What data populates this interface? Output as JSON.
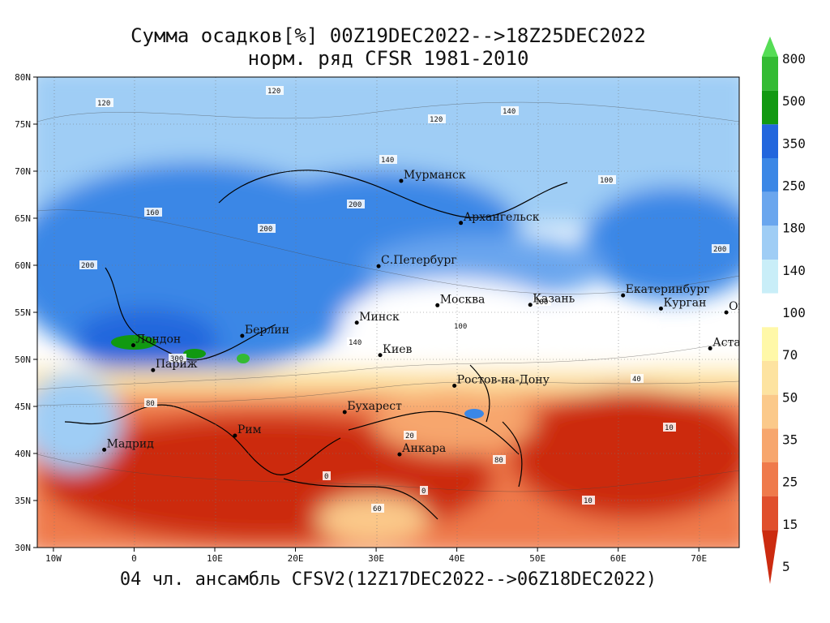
{
  "title_line1": "Сумма осадков[%] 00Z19DEC2022-->18Z25DEC2022",
  "title_line2": "норм. ряд CFSR 1981-2010",
  "footer": "04 чл. ансамбль CFSV2(12Z17DEC2022-->06Z18DEC2022)",
  "lat_ticks": [
    "80N",
    "75N",
    "70N",
    "65N",
    "60N",
    "55N",
    "50N",
    "45N",
    "40N",
    "35N",
    "30N"
  ],
  "lon_ticks": [
    "10W",
    "0",
    "10E",
    "20E",
    "30E",
    "40E",
    "50E",
    "60E",
    "70E"
  ],
  "colorbar": {
    "labels": [
      "800",
      "500",
      "350",
      "250",
      "180",
      "140",
      "100",
      "70",
      "50",
      "35",
      "25",
      "15",
      "5"
    ],
    "colors": [
      "#55dd55",
      "#33bb33",
      "#119911",
      "#2266dd",
      "#3b87e6",
      "#6aa6ee",
      "#9fcdf5",
      "#c9eef8",
      "#ffffff",
      "#fff8a8",
      "#fde3a0",
      "#fbc98a",
      "#f7a66d",
      "#ef7a4b",
      "#e04f2c",
      "#cc2b10"
    ]
  },
  "cities": [
    {
      "name": "Мурманск",
      "lon": 33.1,
      "lat": 68.97
    },
    {
      "name": "Архангельск",
      "lon": 40.5,
      "lat": 64.5
    },
    {
      "name": "С.Петербург",
      "lon": 30.3,
      "lat": 59.9
    },
    {
      "name": "Москва",
      "lon": 37.6,
      "lat": 55.75
    },
    {
      "name": "Казань",
      "lon": 49.1,
      "lat": 55.8
    },
    {
      "name": "Екатеринбург",
      "lon": 60.6,
      "lat": 56.8
    },
    {
      "name": "Курган",
      "lon": 65.3,
      "lat": 55.4
    },
    {
      "name": "Омск",
      "lon": 73.4,
      "lat": 54.99
    },
    {
      "name": "Астана",
      "lon": 71.4,
      "lat": 51.17
    },
    {
      "name": "Минск",
      "lon": 27.6,
      "lat": 53.9
    },
    {
      "name": "Киев",
      "lon": 30.5,
      "lat": 50.45
    },
    {
      "name": "Берлин",
      "lon": 13.4,
      "lat": 52.5
    },
    {
      "name": "Лондон",
      "lon": -0.1,
      "lat": 51.5
    },
    {
      "name": "Париж",
      "lon": 2.35,
      "lat": 48.86
    },
    {
      "name": "Ростов-на-Дону",
      "lon": 39.7,
      "lat": 47.2
    },
    {
      "name": "Бухарест",
      "lon": 26.1,
      "lat": 44.4
    },
    {
      "name": "Рим",
      "lon": 12.5,
      "lat": 41.9
    },
    {
      "name": "Мадрид",
      "lon": -3.7,
      "lat": 40.4
    },
    {
      "name": "Анкара",
      "lon": 32.9,
      "lat": 39.9
    }
  ],
  "contour_labels": [
    "120",
    "140",
    "160",
    "200",
    "100",
    "80",
    "60",
    "40",
    "20",
    "10",
    "0",
    "300"
  ]
}
